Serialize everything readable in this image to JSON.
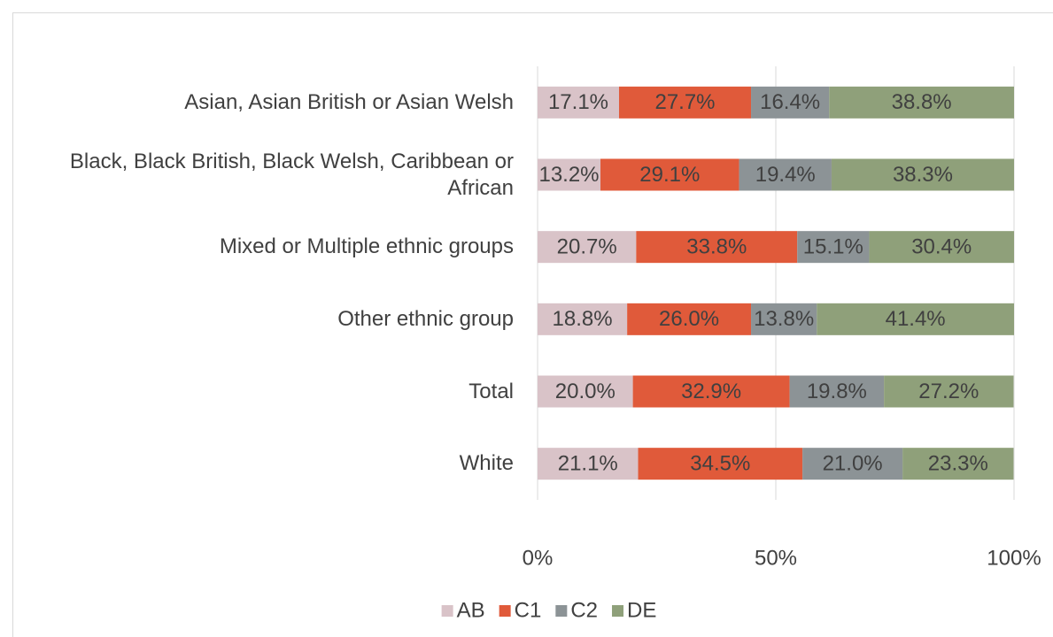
{
  "chart_data": {
    "type": "stacked-barh",
    "categories": [
      "Asian, Asian British or Asian Welsh",
      "Black, Black British, Black Welsh, Caribbean or African",
      "Mixed or Multiple ethnic groups",
      "Other ethnic group",
      "Total",
      "White"
    ],
    "series": [
      {
        "name": "AB",
        "color": "#d9c3c8",
        "values": [
          17.1,
          13.2,
          20.7,
          18.8,
          20.0,
          21.1
        ],
        "value_labels": [
          "17.1%",
          "13.2%",
          "20.7%",
          "18.8%",
          "20.0%",
          "21.1%"
        ]
      },
      {
        "name": "C1",
        "color": "#e05a3a",
        "values": [
          27.7,
          29.1,
          33.8,
          26.0,
          32.9,
          34.5
        ],
        "value_labels": [
          "27.7%",
          "29.1%",
          "33.8%",
          "26.0%",
          "32.9%",
          "34.5%"
        ]
      },
      {
        "name": "C2",
        "color": "#8c9396",
        "values": [
          16.4,
          19.4,
          15.1,
          13.8,
          19.8,
          21.0
        ],
        "value_labels": [
          "16.4%",
          "19.4%",
          "15.1%",
          "13.8%",
          "19.8%",
          "21.0%"
        ]
      },
      {
        "name": "DE",
        "color": "#8fa07a",
        "values": [
          38.8,
          38.3,
          30.4,
          41.4,
          27.2,
          23.3
        ],
        "value_labels": [
          "38.8%",
          "38.3%",
          "30.4%",
          "41.4%",
          "27.2%",
          "23.3%"
        ]
      }
    ],
    "xlim": [
      0,
      100
    ],
    "xticks": [
      {
        "value": 0,
        "label": "0%"
      },
      {
        "value": 50,
        "label": "50%"
      },
      {
        "value": 100,
        "label": "100%"
      }
    ],
    "grid": true,
    "legend": "bottom"
  }
}
